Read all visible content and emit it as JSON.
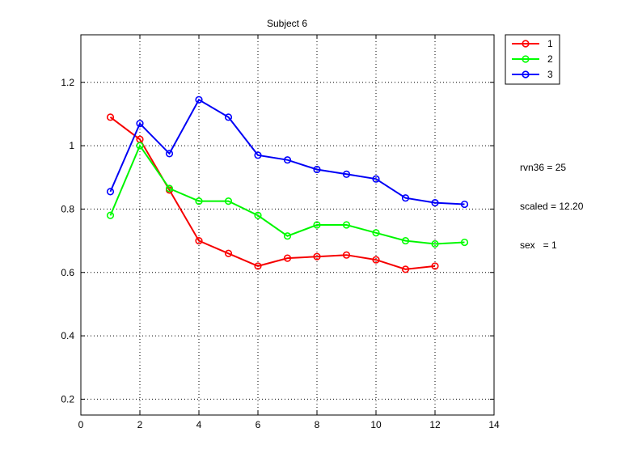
{
  "chart_data": {
    "type": "line",
    "title": "Subject 6",
    "xlabel": "",
    "ylabel": "",
    "xlim": [
      0,
      14
    ],
    "ylim": [
      0.15,
      1.35
    ],
    "x_ticks": [
      "0",
      "2",
      "4",
      "6",
      "8",
      "10",
      "12",
      "14"
    ],
    "y_ticks": [
      "0.2",
      "0.4",
      "0.6",
      "0.8",
      "1",
      "1.2"
    ],
    "grid": true,
    "legend_position": "outside-top-right",
    "series": [
      {
        "name": "1",
        "color": "#ff0000",
        "x": [
          1,
          2,
          3,
          4,
          5,
          6,
          7,
          8,
          9,
          10,
          11,
          12
        ],
        "y": [
          1.09,
          1.02,
          0.86,
          0.7,
          0.66,
          0.62,
          0.645,
          0.65,
          0.655,
          0.64,
          0.61,
          0.62
        ]
      },
      {
        "name": "2",
        "color": "#00ff00",
        "x": [
          1,
          2,
          3,
          4,
          5,
          6,
          7,
          8,
          9,
          10,
          11,
          12,
          13
        ],
        "y": [
          0.78,
          1.0,
          0.865,
          0.825,
          0.825,
          0.78,
          0.715,
          0.75,
          0.75,
          0.725,
          0.7,
          0.69,
          0.695
        ]
      },
      {
        "name": "3",
        "color": "#0000ff",
        "x": [
          1,
          2,
          3,
          4,
          5,
          6,
          7,
          8,
          9,
          10,
          11,
          12,
          13
        ],
        "y": [
          0.855,
          1.07,
          0.975,
          1.145,
          1.09,
          0.97,
          0.955,
          0.925,
          0.91,
          0.895,
          0.835,
          0.82,
          0.815
        ]
      }
    ]
  },
  "annotations": [
    "rvn36 = 25",
    "scaled = 12.20",
    "sex   = 1"
  ],
  "colors": {
    "dark_series_red": "#cc0000",
    "dark_series_green": "#00cc00",
    "dark_series_blue": "#0000cc"
  }
}
